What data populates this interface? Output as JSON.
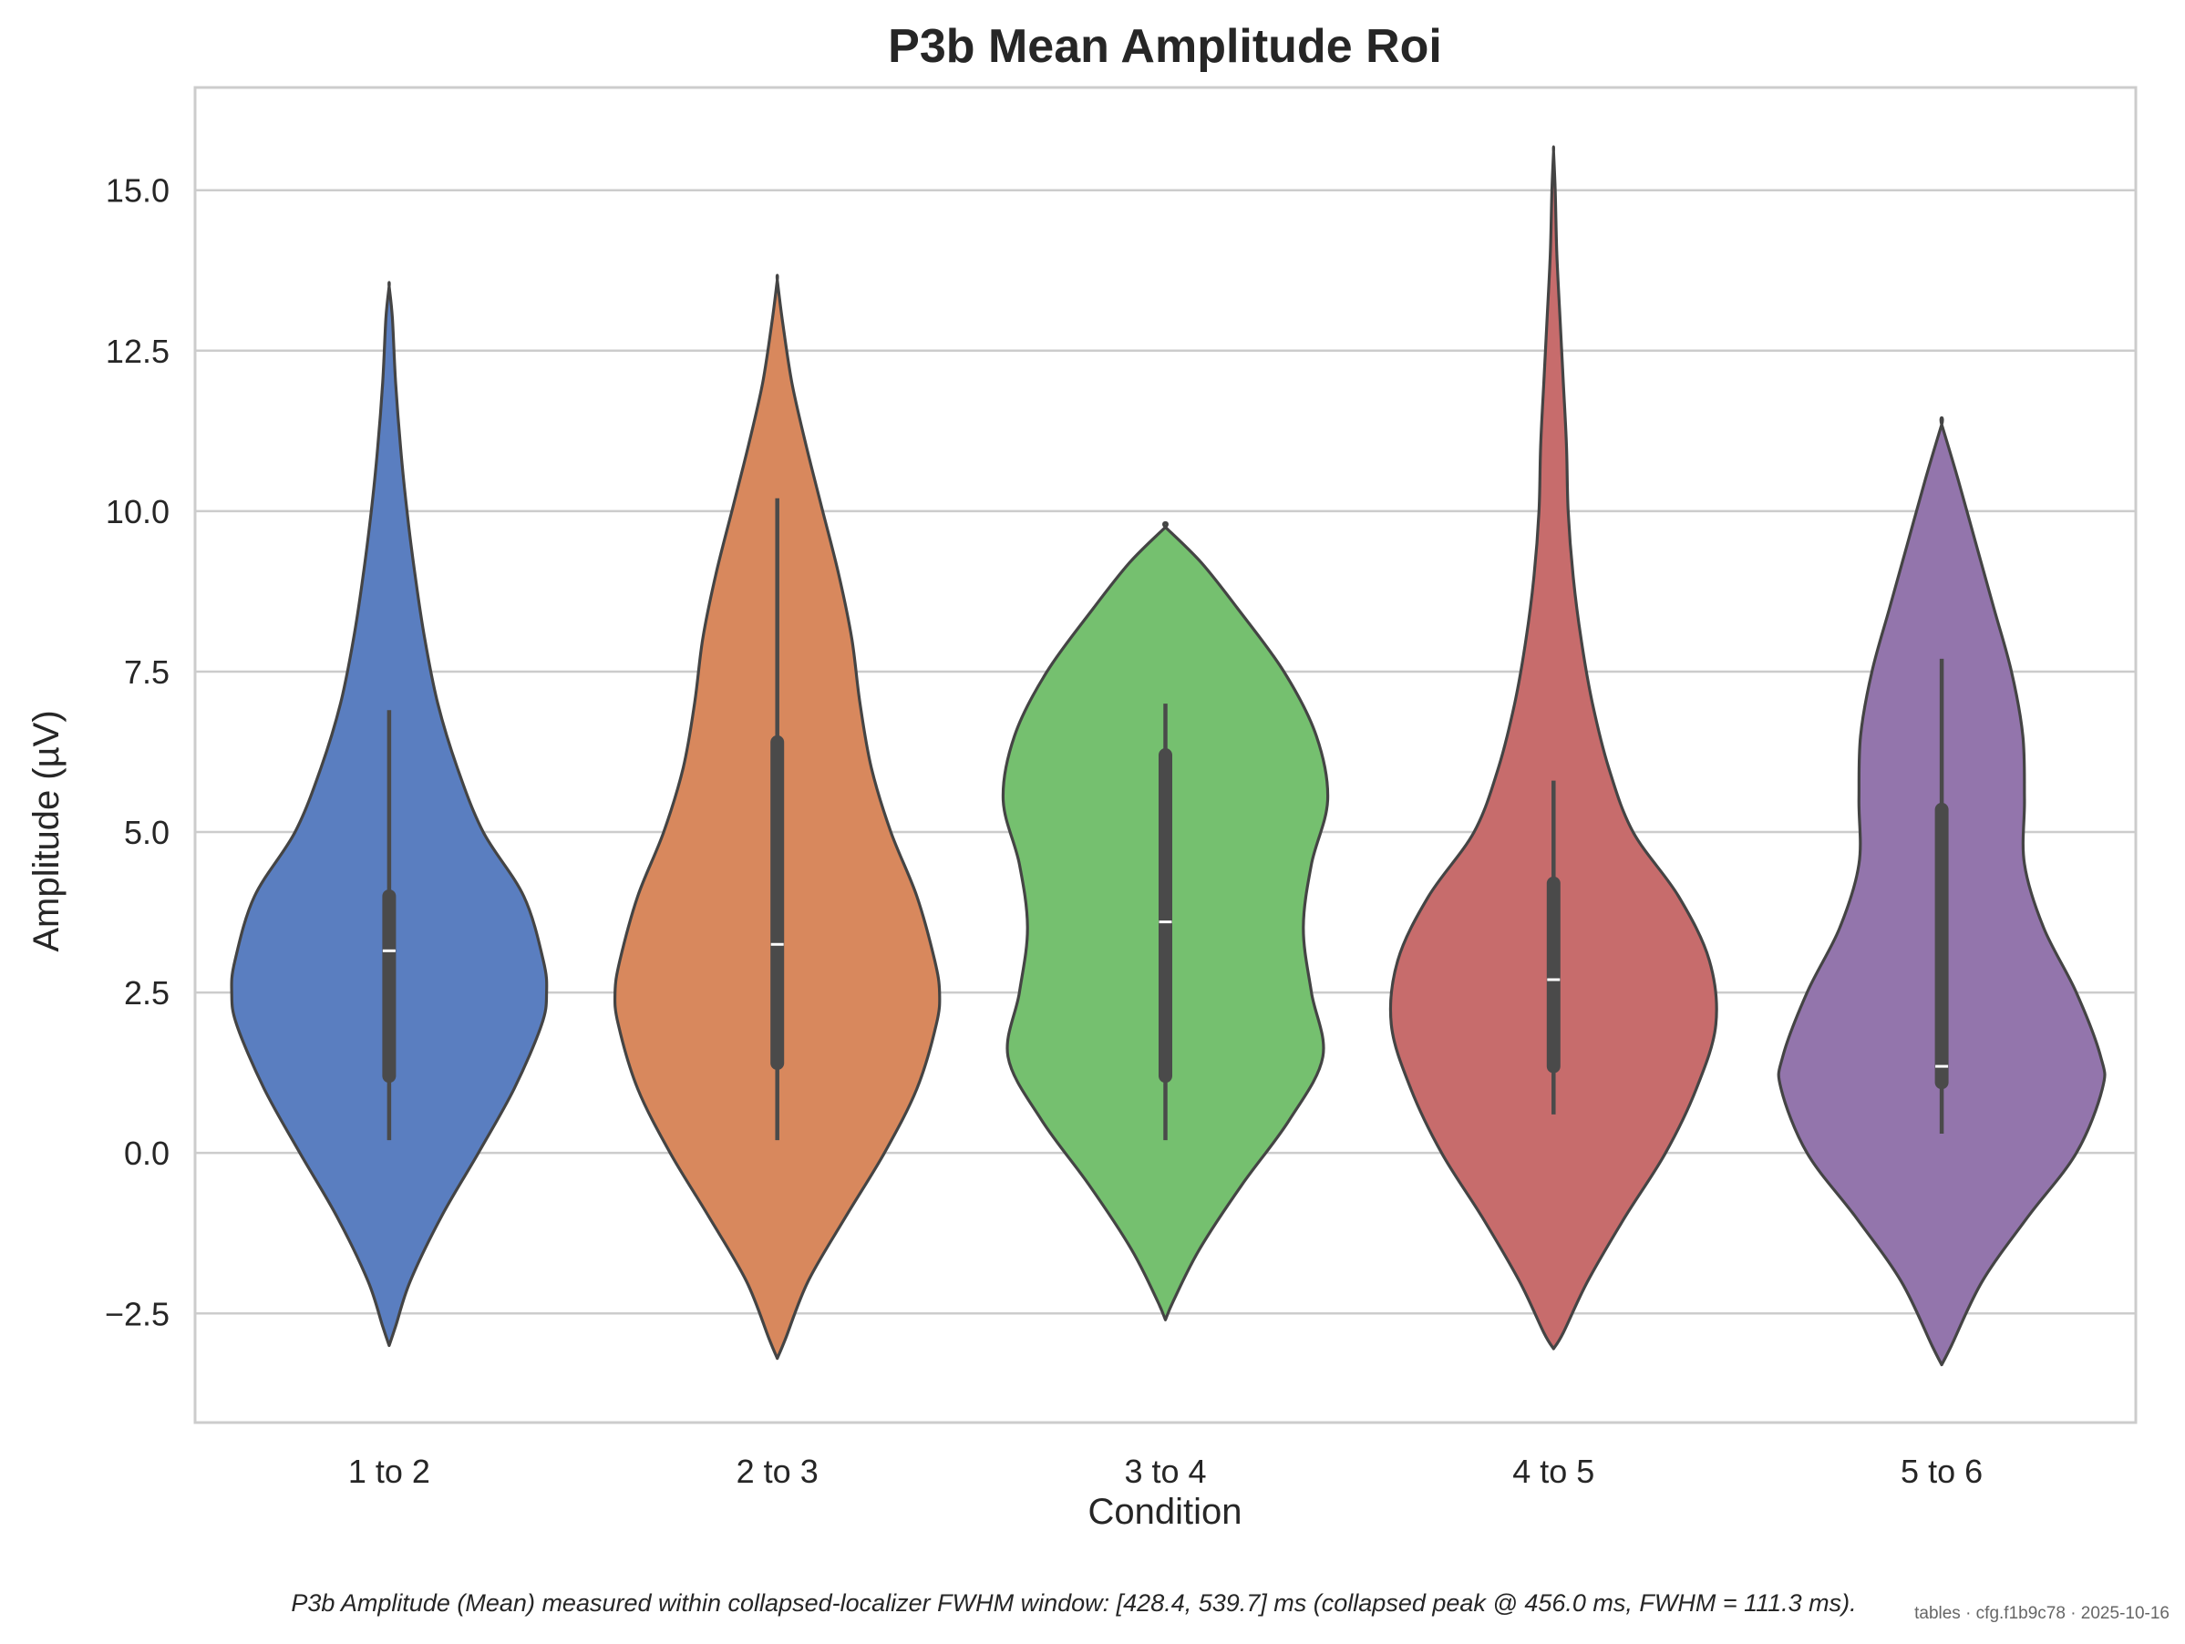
{
  "chart_data": {
    "type": "violin",
    "title": "P3b Mean Amplitude Roi",
    "xlabel": "Condition",
    "ylabel": "Amplitude (µV)",
    "ylim": [
      -4.2,
      16.6
    ],
    "yticks": [
      -2.5,
      0.0,
      2.5,
      5.0,
      7.5,
      10.0,
      12.5,
      15.0
    ],
    "ytick_labels": [
      "−2.5",
      "0.0",
      "2.5",
      "5.0",
      "7.5",
      "10.0",
      "12.5",
      "15.0"
    ],
    "grid": "horizontal",
    "categories": [
      "1 to 2",
      "2 to 3",
      "3 to 4",
      "4 to 5",
      "5 to 6"
    ],
    "series": [
      {
        "category": "1 to 2",
        "color": "#5a7ec0",
        "min": 0.2,
        "q1": 1.2,
        "median": 3.15,
        "q3": 4.0,
        "max": 6.9,
        "kde_range": [
          -3.0,
          13.5
        ],
        "density": [
          [
            -3.0,
            0.0
          ],
          [
            -2.7,
            0.04
          ],
          [
            -2.0,
            0.13
          ],
          [
            -1.0,
            0.32
          ],
          [
            0.0,
            0.55
          ],
          [
            1.0,
            0.77
          ],
          [
            2.0,
            0.94
          ],
          [
            2.5,
            0.97
          ],
          [
            3.0,
            0.95
          ],
          [
            4.0,
            0.83
          ],
          [
            5.0,
            0.58
          ],
          [
            6.0,
            0.42
          ],
          [
            7.0,
            0.3
          ],
          [
            8.0,
            0.22
          ],
          [
            9.0,
            0.16
          ],
          [
            10.0,
            0.11
          ],
          [
            11.0,
            0.07
          ],
          [
            12.0,
            0.04
          ],
          [
            13.0,
            0.02
          ],
          [
            13.5,
            0.0
          ]
        ]
      },
      {
        "category": "2 to 3",
        "color": "#d8885d",
        "min": 0.2,
        "q1": 1.4,
        "median": 3.25,
        "q3": 6.4,
        "max": 10.2,
        "kde_range": [
          -3.2,
          13.6
        ],
        "density": [
          [
            -3.2,
            0.0
          ],
          [
            -2.9,
            0.05
          ],
          [
            -2.0,
            0.19
          ],
          [
            -1.0,
            0.42
          ],
          [
            0.0,
            0.66
          ],
          [
            1.0,
            0.86
          ],
          [
            2.0,
            0.98
          ],
          [
            2.5,
            1.0
          ],
          [
            3.0,
            0.97
          ],
          [
            4.0,
            0.86
          ],
          [
            5.0,
            0.7
          ],
          [
            6.0,
            0.58
          ],
          [
            7.0,
            0.51
          ],
          [
            8.0,
            0.46
          ],
          [
            9.0,
            0.38
          ],
          [
            10.0,
            0.28
          ],
          [
            11.0,
            0.18
          ],
          [
            12.0,
            0.09
          ],
          [
            13.0,
            0.03
          ],
          [
            13.6,
            0.0
          ]
        ]
      },
      {
        "category": "3 to 4",
        "color": "#75c06f",
        "min": 0.2,
        "q1": 1.2,
        "median": 3.6,
        "q3": 6.2,
        "max": 7.0,
        "kde_range": [
          -2.6,
          9.75
        ],
        "density": [
          [
            -2.6,
            0.0
          ],
          [
            -2.3,
            0.05
          ],
          [
            -1.5,
            0.21
          ],
          [
            -0.5,
            0.47
          ],
          [
            0.5,
            0.76
          ],
          [
            1.5,
            0.97
          ],
          [
            2.5,
            0.9
          ],
          [
            3.5,
            0.85
          ],
          [
            4.5,
            0.9
          ],
          [
            5.5,
            1.0
          ],
          [
            6.5,
            0.93
          ],
          [
            7.5,
            0.73
          ],
          [
            8.5,
            0.44
          ],
          [
            9.2,
            0.22
          ],
          [
            9.75,
            0.0
          ]
        ]
      },
      {
        "category": "4 to 5",
        "color": "#c76c6c",
        "min": 0.6,
        "q1": 1.35,
        "median": 2.7,
        "q3": 4.2,
        "max": 5.8,
        "kde_range": [
          -3.05,
          15.6
        ],
        "density": [
          [
            -3.05,
            0.0
          ],
          [
            -2.8,
            0.06
          ],
          [
            -2.0,
            0.21
          ],
          [
            -1.0,
            0.44
          ],
          [
            0.0,
            0.69
          ],
          [
            1.0,
            0.88
          ],
          [
            2.0,
            1.0
          ],
          [
            3.0,
            0.96
          ],
          [
            4.0,
            0.77
          ],
          [
            5.0,
            0.49
          ],
          [
            6.0,
            0.34
          ],
          [
            7.0,
            0.24
          ],
          [
            8.0,
            0.17
          ],
          [
            9.0,
            0.12
          ],
          [
            10.0,
            0.09
          ],
          [
            11.0,
            0.08
          ],
          [
            12.0,
            0.06
          ],
          [
            13.0,
            0.04
          ],
          [
            14.0,
            0.02
          ],
          [
            15.0,
            0.01
          ],
          [
            15.6,
            0.0
          ]
        ]
      },
      {
        "category": "5 to 6",
        "color": "#9375ac",
        "min": 0.3,
        "q1": 1.1,
        "median": 1.35,
        "q3": 5.35,
        "max": 7.7,
        "kde_range": [
          -3.3,
          11.35
        ],
        "density": [
          [
            -3.3,
            0.0
          ],
          [
            -3.0,
            0.06
          ],
          [
            -2.0,
            0.25
          ],
          [
            -1.0,
            0.53
          ],
          [
            0.0,
            0.83
          ],
          [
            1.0,
            0.99
          ],
          [
            1.5,
            0.98
          ],
          [
            2.5,
            0.83
          ],
          [
            3.5,
            0.63
          ],
          [
            4.5,
            0.51
          ],
          [
            5.5,
            0.51
          ],
          [
            6.5,
            0.5
          ],
          [
            7.5,
            0.43
          ],
          [
            8.5,
            0.32
          ],
          [
            9.5,
            0.21
          ],
          [
            10.5,
            0.1
          ],
          [
            11.35,
            0.0
          ]
        ]
      }
    ],
    "caption": "P3b Amplitude (Mean) measured within collapsed-localizer FWHM window: [428.4, 539.7] ms (collapsed peak @ 456.0 ms, FWHM = 111.3 ms).",
    "stamp": "tables · cfg.f1b9c78 · 2025-10-16"
  }
}
